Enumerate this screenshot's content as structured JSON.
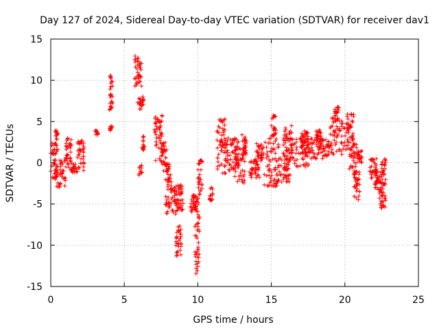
{
  "chart_data": {
    "type": "scatter",
    "title": "Day 127 of 2024, Sidereal Day-to-day VTEC variation (SDTVAR) for receiver dav1",
    "xlabel": "GPS time / hours",
    "ylabel": "SDTVAR / TECUs",
    "xlim": [
      0,
      25
    ],
    "ylim": [
      -15,
      15
    ],
    "xticks": [
      "0",
      "5",
      "10",
      "15",
      "20",
      "25"
    ],
    "yticks": [
      "-15",
      "-10",
      "-5",
      "0",
      "5",
      "10",
      "15"
    ],
    "grid": true,
    "marker": "+",
    "color": "#ff0000",
    "segments": [
      {
        "x0": 0.0,
        "x1": 0.4,
        "ymin": -2.0,
        "ymax": 2.5
      },
      {
        "x0": 0.3,
        "x1": 0.5,
        "ymin": 1.0,
        "ymax": 4.0
      },
      {
        "x0": 0.4,
        "x1": 1.0,
        "ymin": -3.0,
        "ymax": 0.5
      },
      {
        "x0": 1.0,
        "x1": 1.4,
        "ymin": -1.0,
        "ymax": 3.5
      },
      {
        "x0": 1.4,
        "x1": 1.8,
        "ymin": -1.2,
        "ymax": 0.0
      },
      {
        "x0": 1.8,
        "x1": 2.3,
        "ymin": -1.0,
        "ymax": 2.7
      },
      {
        "x0": 3.0,
        "x1": 3.2,
        "ymin": 3.3,
        "ymax": 4.0
      },
      {
        "x0": 4.0,
        "x1": 4.2,
        "ymin": 6.3,
        "ymax": 11.2
      },
      {
        "x0": 4.0,
        "x1": 4.2,
        "ymin": 3.9,
        "ymax": 4.4
      },
      {
        "x0": 5.7,
        "x1": 6.2,
        "ymin": 9.0,
        "ymax": 13.2
      },
      {
        "x0": 5.9,
        "x1": 6.3,
        "ymin": 6.5,
        "ymax": 8.0
      },
      {
        "x0": 6.0,
        "x1": 6.2,
        "ymin": -1.5,
        "ymax": -0.3
      },
      {
        "x0": 6.2,
        "x1": 6.4,
        "ymin": 1.5,
        "ymax": 3.5
      },
      {
        "x0": 7.0,
        "x1": 7.6,
        "ymin": 0.0,
        "ymax": 6.0
      },
      {
        "x0": 7.5,
        "x1": 7.9,
        "ymin": -1.0,
        "ymax": 2.5
      },
      {
        "x0": 7.8,
        "x1": 8.2,
        "ymin": -3.0,
        "ymax": 0.0
      },
      {
        "x0": 7.8,
        "x1": 8.6,
        "ymin": -6.5,
        "ymax": -3.0
      },
      {
        "x0": 8.4,
        "x1": 9.0,
        "ymin": -6.0,
        "ymax": -2.5
      },
      {
        "x0": 8.5,
        "x1": 8.9,
        "ymin": -11.3,
        "ymax": -7.5
      },
      {
        "x0": 9.5,
        "x1": 9.9,
        "ymin": -6.0,
        "ymax": -3.8
      },
      {
        "x0": 9.8,
        "x1": 10.1,
        "ymin": -13.5,
        "ymax": -4.0
      },
      {
        "x0": 10.0,
        "x1": 10.3,
        "ymin": -4.0,
        "ymax": 0.3
      },
      {
        "x0": 10.8,
        "x1": 11.0,
        "ymin": -4.8,
        "ymax": -3.0
      },
      {
        "x0": 11.3,
        "x1": 12.0,
        "ymin": -1.5,
        "ymax": 5.3
      },
      {
        "x0": 11.8,
        "x1": 12.8,
        "ymin": -1.0,
        "ymax": 3.0
      },
      {
        "x0": 12.5,
        "x1": 13.2,
        "ymin": -2.5,
        "ymax": 2.0
      },
      {
        "x0": 13.0,
        "x1": 13.3,
        "ymin": 1.0,
        "ymax": 3.5
      },
      {
        "x0": 13.5,
        "x1": 14.2,
        "ymin": -2.0,
        "ymax": 0.5
      },
      {
        "x0": 14.0,
        "x1": 14.5,
        "ymin": 0.0,
        "ymax": 2.5
      },
      {
        "x0": 14.5,
        "x1": 15.5,
        "ymin": -3.0,
        "ymax": 3.0
      },
      {
        "x0": 15.0,
        "x1": 15.3,
        "ymin": 3.0,
        "ymax": 5.8
      },
      {
        "x0": 15.5,
        "x1": 16.3,
        "ymin": -2.5,
        "ymax": 1.0
      },
      {
        "x0": 15.8,
        "x1": 16.5,
        "ymin": 0.5,
        "ymax": 4.5
      },
      {
        "x0": 16.3,
        "x1": 17.5,
        "ymin": -0.5,
        "ymax": 3.0
      },
      {
        "x0": 17.0,
        "x1": 17.5,
        "ymin": 2.0,
        "ymax": 4.0
      },
      {
        "x0": 17.5,
        "x1": 19.0,
        "ymin": 0.5,
        "ymax": 3.0
      },
      {
        "x0": 18.0,
        "x1": 18.5,
        "ymin": 2.5,
        "ymax": 4.0
      },
      {
        "x0": 19.0,
        "x1": 19.8,
        "ymin": 1.0,
        "ymax": 5.5
      },
      {
        "x0": 19.3,
        "x1": 19.6,
        "ymin": 5.0,
        "ymax": 6.8
      },
      {
        "x0": 19.8,
        "x1": 20.6,
        "ymin": 1.5,
        "ymax": 6.0
      },
      {
        "x0": 20.3,
        "x1": 20.8,
        "ymin": -1.5,
        "ymax": 2.5
      },
      {
        "x0": 20.6,
        "x1": 21.0,
        "ymin": -4.5,
        "ymax": -1.0
      },
      {
        "x0": 20.8,
        "x1": 21.2,
        "ymin": 0.0,
        "ymax": 1.5
      },
      {
        "x0": 21.7,
        "x1": 22.2,
        "ymin": -2.0,
        "ymax": 0.5
      },
      {
        "x0": 22.0,
        "x1": 22.5,
        "ymin": -3.5,
        "ymax": -1.0
      },
      {
        "x0": 22.3,
        "x1": 22.8,
        "ymin": -5.5,
        "ymax": -2.0
      },
      {
        "x0": 22.5,
        "x1": 22.8,
        "ymin": -1.5,
        "ymax": 0.5
      }
    ]
  }
}
